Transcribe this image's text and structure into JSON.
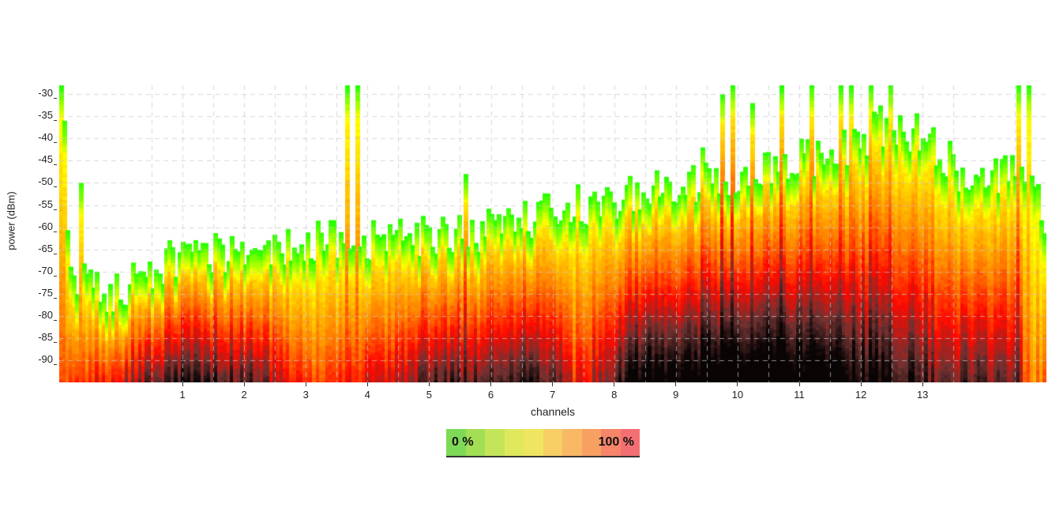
{
  "chart_data": {
    "type": "heatmap",
    "title": "",
    "xlabel": "channels",
    "ylabel": "power (dBm)",
    "x_ticks": [
      "1",
      "2",
      "3",
      "4",
      "5",
      "6",
      "7",
      "8",
      "9",
      "10",
      "11",
      "12",
      "13"
    ],
    "y_ticks": [
      "-30",
      "-35",
      "-40",
      "-45",
      "-50",
      "-55",
      "-60",
      "-65",
      "-70",
      "-75",
      "-80",
      "-85",
      "-90"
    ],
    "ylim": [
      -95,
      -28
    ],
    "grid": "dashed",
    "colorscale": [
      "#00ff00",
      "#ffff00",
      "#ff0000",
      "#000000"
    ],
    "legend": {
      "min_label": "0 %",
      "max_label": "100 %",
      "colors": [
        "#7ed957",
        "#a3df55",
        "#c4e55a",
        "#e0e95e",
        "#f0e560",
        "#f7cf64",
        "#f9b865",
        "#f8a062",
        "#f6856a",
        "#f46f72"
      ]
    },
    "description": "Wi-Fi spectrum density heatmap: highest density (black/dark red) at low power around channels 9-12; strong peaks reaching above -30 dBm near channel 3.7, 9.5-12, and ~14",
    "envelope_profile": {
      "columns": 300,
      "peak_dbm_by_x": [
        [
          0,
          -28
        ],
        [
          0.01,
          -72
        ],
        [
          0.06,
          -75
        ],
        [
          0.1,
          -68
        ],
        [
          0.2,
          -64
        ],
        [
          0.3,
          -63
        ],
        [
          0.4,
          -62
        ],
        [
          0.48,
          -58
        ],
        [
          0.5,
          -56
        ],
        [
          0.6,
          -52
        ],
        [
          0.7,
          -48
        ],
        [
          0.8,
          -42
        ],
        [
          0.83,
          -37
        ],
        [
          0.88,
          -40
        ],
        [
          0.92,
          -50
        ],
        [
          0.97,
          -47
        ],
        [
          1,
          -58
        ]
      ],
      "heat_by_x": [
        [
          0,
          0.3
        ],
        [
          0.06,
          0.55
        ],
        [
          0.12,
          0.75
        ],
        [
          0.2,
          0.7
        ],
        [
          0.25,
          0.4
        ],
        [
          0.3,
          0.45
        ],
        [
          0.38,
          0.7
        ],
        [
          0.5,
          0.72
        ],
        [
          0.52,
          0.45
        ],
        [
          0.58,
          0.85
        ],
        [
          0.64,
          0.9
        ],
        [
          0.7,
          0.97
        ],
        [
          0.75,
          0.93
        ],
        [
          0.8,
          0.85
        ],
        [
          0.88,
          0.7
        ],
        [
          0.97,
          0.65
        ],
        [
          0.98,
          0.3
        ],
        [
          1,
          0.3
        ]
      ],
      "spikes": [
        [
          0.0,
          -28
        ],
        [
          0.003,
          -36
        ],
        [
          0.02,
          -50
        ],
        [
          0.29,
          -28
        ],
        [
          0.3,
          -28
        ],
        [
          0.41,
          -48
        ],
        [
          0.64,
          -46
        ],
        [
          0.65,
          -42
        ],
        [
          0.67,
          -30
        ],
        [
          0.68,
          -28
        ],
        [
          0.7,
          -32
        ],
        [
          0.73,
          -28
        ],
        [
          0.76,
          -28
        ],
        [
          0.79,
          -28
        ],
        [
          0.8,
          -28
        ],
        [
          0.82,
          -28
        ],
        [
          0.84,
          -28
        ],
        [
          0.84,
          -33
        ],
        [
          0.97,
          -28
        ],
        [
          0.98,
          -28
        ]
      ]
    }
  }
}
